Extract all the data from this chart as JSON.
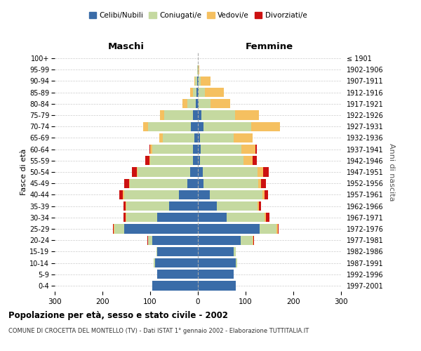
{
  "age_groups": [
    "0-4",
    "5-9",
    "10-14",
    "15-19",
    "20-24",
    "25-29",
    "30-34",
    "35-39",
    "40-44",
    "45-49",
    "50-54",
    "55-59",
    "60-64",
    "65-69",
    "70-74",
    "75-79",
    "80-84",
    "85-89",
    "90-94",
    "95-99",
    "100+"
  ],
  "birth_years": [
    "1997-2001",
    "1992-1996",
    "1987-1991",
    "1982-1986",
    "1977-1981",
    "1972-1976",
    "1967-1971",
    "1962-1966",
    "1957-1961",
    "1952-1956",
    "1947-1951",
    "1942-1946",
    "1937-1941",
    "1932-1936",
    "1927-1931",
    "1922-1926",
    "1917-1921",
    "1912-1916",
    "1907-1911",
    "1902-1906",
    "≤ 1901"
  ],
  "maschi": {
    "celibi": [
      95,
      85,
      90,
      85,
      95,
      155,
      85,
      60,
      40,
      22,
      16,
      10,
      10,
      8,
      15,
      10,
      4,
      3,
      2,
      0,
      0
    ],
    "coniugati": [
      0,
      0,
      2,
      2,
      10,
      20,
      65,
      90,
      115,
      120,
      110,
      90,
      85,
      65,
      90,
      60,
      18,
      8,
      4,
      1,
      0
    ],
    "vedovi": [
      0,
      0,
      0,
      0,
      0,
      1,
      1,
      1,
      2,
      2,
      2,
      2,
      5,
      8,
      10,
      10,
      10,
      5,
      2,
      0,
      0
    ],
    "divorziati": [
      0,
      0,
      0,
      0,
      1,
      2,
      5,
      5,
      8,
      10,
      10,
      8,
      2,
      0,
      0,
      0,
      0,
      0,
      0,
      0,
      0
    ]
  },
  "femmine": {
    "nubili": [
      80,
      75,
      80,
      75,
      90,
      130,
      60,
      40,
      25,
      12,
      10,
      5,
      6,
      5,
      12,
      8,
      2,
      2,
      1,
      0,
      0
    ],
    "coniugate": [
      0,
      0,
      2,
      5,
      25,
      35,
      80,
      85,
      110,
      115,
      115,
      90,
      85,
      70,
      100,
      70,
      25,
      12,
      5,
      1,
      0
    ],
    "vedove": [
      0,
      0,
      0,
      0,
      1,
      2,
      2,
      3,
      4,
      5,
      12,
      20,
      30,
      40,
      60,
      50,
      40,
      40,
      20,
      2,
      0
    ],
    "divorziate": [
      0,
      0,
      0,
      0,
      1,
      2,
      8,
      5,
      8,
      10,
      12,
      8,
      2,
      0,
      0,
      0,
      0,
      0,
      0,
      0,
      0
    ]
  },
  "colors": {
    "celibi": "#3a6ca8",
    "coniugati": "#c5d9a0",
    "vedovi": "#f5c060",
    "divorziati": "#cc1111"
  },
  "xlim": 300,
  "title": "Popolazione per età, sesso e stato civile - 2002",
  "subtitle": "COMUNE DI CROCETTA DEL MONTELLO (TV) - Dati ISTAT 1° gennaio 2002 - Elaborazione TUTTITALIA.IT",
  "ylabel_left": "Fasce di età",
  "ylabel_right": "Anni di nascita",
  "xlabel_left": "Maschi",
  "xlabel_right": "Femmine",
  "legend_labels": [
    "Celibi/Nubili",
    "Coniugati/e",
    "Vedovi/e",
    "Divorziati/e"
  ]
}
